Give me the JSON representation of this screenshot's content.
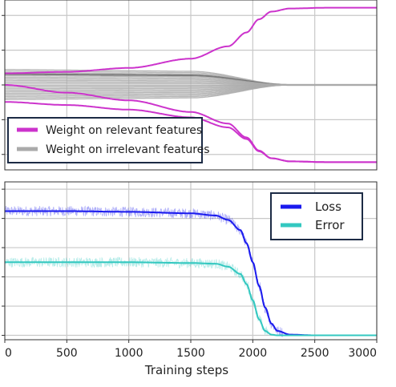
{
  "chart_data": [
    {
      "type": "line",
      "title": "",
      "xlabel": "",
      "ylabel": "",
      "xlim": [
        0,
        3000
      ],
      "ylim": [
        -1.1,
        1.1
      ],
      "grid": true,
      "legend_position": "bottom-left",
      "series": [
        {
          "name": "Weight on relevant features",
          "color": "#cc33cc",
          "lines": [
            {
              "x": [
                0,
                500,
                1000,
                1500,
                1800,
                1950,
                2050,
                2150,
                2300,
                2600,
                3000
              ],
              "y": [
                0.15,
                0.17,
                0.22,
                0.34,
                0.5,
                0.68,
                0.85,
                0.95,
                0.99,
                1.0,
                1.0
              ]
            },
            {
              "x": [
                0,
                500,
                1000,
                1500,
                1800,
                1950,
                2050,
                2150,
                2300,
                2600,
                3000
              ],
              "y": [
                0.0,
                -0.1,
                -0.2,
                -0.35,
                -0.5,
                -0.68,
                -0.85,
                -0.95,
                -0.99,
                -1.0,
                -1.0
              ]
            },
            {
              "x": [
                0,
                500,
                1000,
                1500,
                1800,
                1950,
                2050,
                2150,
                2300,
                2600,
                3000
              ],
              "y": [
                -0.22,
                -0.26,
                -0.32,
                -0.42,
                -0.55,
                -0.7,
                -0.86,
                -0.95,
                -0.99,
                -1.0,
                -1.0
              ]
            }
          ]
        },
        {
          "name": "Weight on irrelevant features",
          "color": "#aaaaaa",
          "initial_values": [
            0.2,
            0.18,
            0.16,
            0.14,
            0.12,
            0.1,
            0.08,
            0.06,
            0.04,
            0.02,
            -0.01,
            -0.03,
            -0.05,
            -0.07,
            -0.09,
            -0.11,
            -0.13,
            -0.15,
            -0.17,
            -0.19
          ],
          "converge_x": 2300,
          "converge_y": 0.0
        }
      ]
    },
    {
      "type": "line",
      "title": "",
      "xlabel": "Training steps",
      "ylabel": "",
      "xlim": [
        0,
        3000
      ],
      "ylim": [
        -0.03,
        1.05
      ],
      "x_ticks": [
        "0",
        "500",
        "1000",
        "1500",
        "2000",
        "2500",
        "3000"
      ],
      "grid": true,
      "legend_position": "top-right",
      "series": [
        {
          "name": "Loss",
          "color": "#1a1aee",
          "x": [
            0,
            500,
            1000,
            1500,
            1700,
            1800,
            1900,
            1950,
            2000,
            2050,
            2100,
            2150,
            2200,
            2300,
            2500,
            3000
          ],
          "y": [
            0.85,
            0.85,
            0.845,
            0.835,
            0.82,
            0.79,
            0.72,
            0.63,
            0.5,
            0.34,
            0.19,
            0.08,
            0.03,
            0.005,
            0.0,
            0.0
          ]
        },
        {
          "name": "Error",
          "color": "#33c8c0",
          "x": [
            0,
            500,
            1000,
            1500,
            1700,
            1800,
            1900,
            1950,
            2000,
            2050,
            2100,
            2150,
            2200,
            2500,
            3000
          ],
          "y": [
            0.5,
            0.5,
            0.5,
            0.495,
            0.49,
            0.47,
            0.42,
            0.35,
            0.24,
            0.11,
            0.03,
            0.005,
            0.0,
            0.0,
            0.0
          ]
        }
      ]
    }
  ]
}
